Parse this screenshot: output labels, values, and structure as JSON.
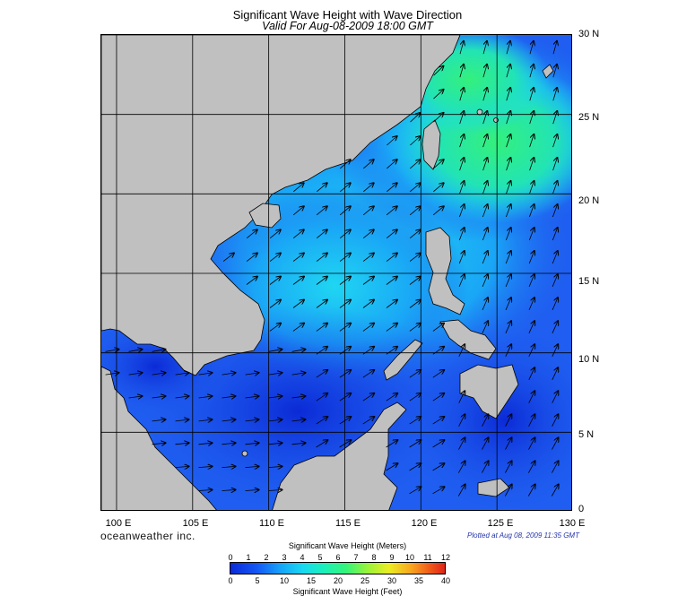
{
  "title": "Significant Wave Height with Wave Direction",
  "subtitle": "Valid For Aug-08-2009 18:00 GMT",
  "lat_labels": [
    "30 N",
    "25 N",
    "20 N",
    "15 N",
    "10 N",
    "5 N",
    "0"
  ],
  "lon_labels": [
    "100 E",
    "105 E",
    "110 E",
    "115 E",
    "120 E",
    "125 E",
    "130 E"
  ],
  "brand": "oceanweather inc.",
  "plotted": "Plotted at Aug 08, 2009 11:35 GMT",
  "colorbar": {
    "title_meters": "Significant Wave Height (Meters)",
    "title_feet": "Significant Wave Height (Feet)",
    "meter_ticks": [
      "0",
      "1",
      "2",
      "3",
      "4",
      "5",
      "6",
      "7",
      "8",
      "9",
      "10",
      "11",
      "12"
    ],
    "feet_ticks": [
      "0",
      "5",
      "10",
      "15",
      "20",
      "25",
      "30",
      "35",
      "40"
    ]
  },
  "map_extent": {
    "lon": [
      99,
      130
    ],
    "lat": [
      0,
      30
    ]
  },
  "colors": {
    "land": "#c0c0c0",
    "low_wave": "#1f5ef0",
    "mid_wave": "#1ed8f0",
    "high_wave": "#2af07a",
    "grid": "#000000"
  }
}
